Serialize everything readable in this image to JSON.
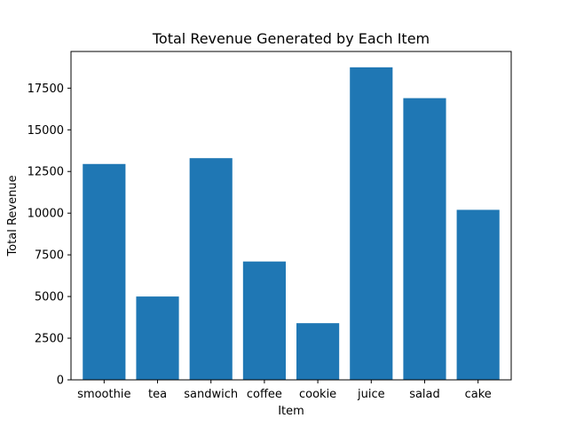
{
  "chart_data": {
    "type": "bar",
    "title": "Total Revenue Generated by Each Item",
    "xlabel": "Item",
    "ylabel": "Total Revenue",
    "categories": [
      "smoothie",
      "tea",
      "sandwich",
      "coffee",
      "cookie",
      "juice",
      "salad",
      "cake"
    ],
    "values": [
      12950,
      5000,
      13300,
      7100,
      3400,
      18750,
      16900,
      10200
    ],
    "ylim": [
      0,
      19700
    ],
    "yticks": [
      0,
      2500,
      5000,
      7500,
      10000,
      12500,
      15000,
      17500
    ],
    "bar_color": "#1f77b4",
    "grid": false,
    "legend": "none"
  }
}
